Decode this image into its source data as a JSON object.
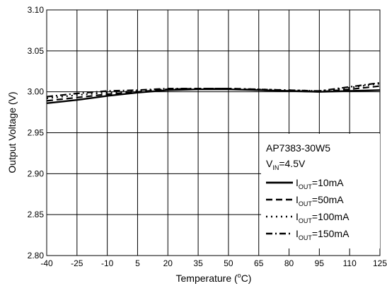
{
  "chart_data": {
    "type": "line",
    "title": "",
    "xlabel_text": "Temperature (",
    "xlabel_sup": "o",
    "xlabel_suffix": "C)",
    "ylabel": "Output Voltage (V)",
    "xlim": [
      -40,
      125
    ],
    "ylim": [
      2.8,
      3.1
    ],
    "x_ticks": [
      "-40",
      "-25",
      "-10",
      "5",
      "20",
      "35",
      "50",
      "65",
      "80",
      "95",
      "110",
      "125"
    ],
    "y_ticks": [
      "2.80",
      "2.85",
      "2.90",
      "2.95",
      "3.00",
      "3.05",
      "3.10"
    ],
    "grid": true,
    "legend_position": "bottom-right",
    "legend_title": "AP7383-30W5",
    "legend_condition": {
      "main": "V",
      "sub": "IN",
      "suffix": "=4.5V"
    },
    "series": [
      {
        "name_main": "I",
        "name_sub": "OUT",
        "name_suffix": "=10mA",
        "dash": "solid",
        "x": [
          -40,
          -25,
          -10,
          5,
          20,
          35,
          50,
          65,
          80,
          95,
          110,
          125
        ],
        "y": [
          2.986,
          2.99,
          2.995,
          2.999,
          3.002,
          3.003,
          3.003,
          3.002,
          3.001,
          3.0,
          3.001,
          3.002
        ]
      },
      {
        "name_main": "I",
        "name_sub": "OUT",
        "name_suffix": "=50mA",
        "dash": "dashed",
        "x": [
          -40,
          -25,
          -10,
          5,
          20,
          35,
          50,
          65,
          80,
          95,
          110,
          125
        ],
        "y": [
          2.989,
          2.993,
          2.997,
          3.0,
          3.003,
          3.004,
          3.004,
          3.002,
          3.001,
          3.0,
          3.003,
          3.007
        ]
      },
      {
        "name_main": "I",
        "name_sub": "OUT",
        "name_suffix": "=100mA",
        "dash": "dotted",
        "x": [
          -40,
          -25,
          -10,
          5,
          20,
          35,
          50,
          65,
          80,
          95,
          110,
          125
        ],
        "y": [
          2.992,
          2.996,
          2.999,
          3.001,
          3.003,
          3.004,
          3.004,
          3.003,
          3.002,
          3.001,
          3.005,
          3.01
        ]
      },
      {
        "name_main": "I",
        "name_sub": "OUT",
        "name_suffix": "=150mA",
        "dash": "dashdot",
        "x": [
          -40,
          -25,
          -10,
          5,
          20,
          35,
          50,
          65,
          80,
          95,
          110,
          125
        ],
        "y": [
          2.994,
          2.998,
          3.001,
          3.002,
          3.004,
          3.004,
          3.004,
          3.003,
          3.002,
          3.001,
          3.006,
          3.011
        ]
      }
    ]
  }
}
